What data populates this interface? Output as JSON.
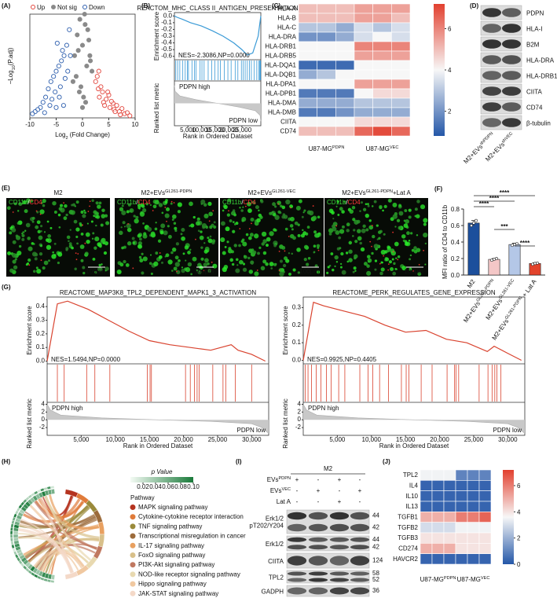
{
  "chart_data": [
    {
      "type": "scatter",
      "panel": "(A)",
      "xlabel": {
        "base": "Log",
        "sub": "2",
        "rest": " (Fold Change)"
      },
      "ylabel": {
        "base": "−Log",
        "sub": "10",
        "rest": "(P.adj)"
      },
      "xlim": [
        -10,
        10
      ],
      "ylim": [
        0,
        100
      ],
      "xticks": [
        -10,
        -5,
        0,
        5,
        10
      ],
      "series": [
        {
          "name": "Up",
          "color": "#e2463d",
          "marker": "open",
          "x": [
            2.5,
            3,
            3.2,
            3.8,
            4,
            4.5,
            5,
            5.2,
            5.8,
            6,
            6.5,
            7,
            7.5,
            8,
            8.5,
            3.5,
            4.2,
            5.5,
            6.2,
            7.2,
            2.8,
            3.1,
            4.8,
            9
          ],
          "y": [
            35,
            28,
            20,
            25,
            15,
            18,
            22,
            10,
            14,
            8,
            12,
            6,
            9,
            4,
            5,
            30,
            12,
            16,
            6,
            3,
            40,
            45,
            25,
            2
          ]
        },
        {
          "name": "Not sig",
          "color": "#8a8a8a",
          "marker": "filled",
          "x": [
            -1.5,
            -1,
            -0.5,
            0,
            0.5,
            1,
            1.5,
            -1.2,
            0.8,
            -0.3,
            0.2,
            1.2,
            -0.8,
            0.4,
            -1.8,
            1.8,
            0,
            -0.6,
            0.6,
            1.4
          ],
          "y": [
            60,
            80,
            95,
            70,
            90,
            85,
            55,
            40,
            50,
            30,
            20,
            75,
            65,
            100,
            35,
            45,
            10,
            25,
            15,
            60
          ]
        },
        {
          "name": "Down",
          "color": "#2e5fae",
          "marker": "open",
          "x": [
            -2.5,
            -3,
            -3.5,
            -4,
            -4.5,
            -5,
            -5.5,
            -6,
            -6.5,
            -7,
            -7.5,
            -8,
            -8.5,
            -9,
            -2.8,
            -3.3,
            -4.2,
            -4.8,
            -5.2,
            -5.8,
            -3.8,
            -4.4,
            -6.2,
            -2.3,
            -3.6,
            -5,
            -7.2,
            -9.5
          ],
          "y": [
            85,
            70,
            60,
            55,
            50,
            45,
            40,
            35,
            28,
            20,
            15,
            10,
            8,
            6,
            45,
            38,
            30,
            72,
            25,
            18,
            65,
            20,
            12,
            60,
            12,
            10,
            5,
            4
          ]
        }
      ]
    },
    {
      "type": "gsea",
      "panel": "(B)",
      "title": "REACTOM_MHC_CLASS II_ANTIGEN_PRESENTATION",
      "nes": "NES=-2.3086,NP=0.0000",
      "high_label": "PDPN high",
      "low_label": "PDPN low",
      "ylabel": "Enrichment score",
      "metric_label": "Ranked list metric",
      "xlabel": "Rank in Ordered Dataset",
      "color": "#3a9ad6",
      "xlim": [
        0,
        32000
      ],
      "xticks": [
        {
          "value": 5000,
          "label": "5,000"
        },
        {
          "value": 10000,
          "label": "10,000"
        },
        {
          "value": 15000,
          "label": "15,000"
        },
        {
          "value": 20000,
          "label": "20,000"
        },
        {
          "value": 25000,
          "label": "25,000"
        }
      ],
      "ylim": [
        -0.65,
        0.05
      ],
      "yticks": [
        {
          "value": 0,
          "label": "0.0"
        },
        -0.1,
        -0.2,
        -0.3,
        -0.4,
        -0.5,
        -0.6
      ],
      "x": [
        0,
        1000,
        3000,
        6000,
        10000,
        14000,
        18000,
        22000,
        25000,
        27000,
        29000,
        31000,
        32000
      ],
      "es": [
        0,
        -0.02,
        -0.05,
        -0.1,
        -0.15,
        -0.22,
        -0.3,
        -0.4,
        -0.5,
        -0.58,
        -0.55,
        -0.3,
        0
      ],
      "hits": [
        500,
        1200,
        2000,
        3100,
        4000,
        4800,
        5200,
        6500,
        7400,
        8000,
        9500,
        10200,
        11000,
        12500,
        13800,
        15000,
        16200,
        17000,
        18500,
        19800,
        21000,
        22500,
        23500,
        24800,
        25500,
        26200,
        27000,
        27800,
        28500,
        29500,
        30500,
        31200,
        31600,
        31800,
        31900
      ],
      "metric_x": [
        0,
        300,
        2000,
        8000,
        16000,
        24000,
        30000,
        31700,
        32000
      ],
      "metric": [
        1.2,
        0.8,
        0.5,
        0.25,
        0,
        -0.25,
        -0.5,
        -0.8,
        -1.2
      ],
      "metric_ylim": [
        -1.5,
        1.5
      ]
    },
    {
      "type": "heatmap",
      "panel": "(C)",
      "rows": [
        "HLA-A",
        "HLA-B",
        "HLA-C",
        "HLA-DRA",
        "HLA-DRB1",
        "HLA-DRB5",
        "HLA-DQA1",
        "HLA-DQB1",
        "HLA-DPA1",
        "HLA-DPB1",
        "HLA-DMA",
        "HLA-DMB",
        "CIITA",
        "CD74"
      ],
      "values": [
        [
          5,
          5,
          5,
          5.5,
          5.5,
          5.5
        ],
        [
          5,
          5,
          5,
          5.5,
          5.5,
          5
        ],
        [
          3,
          3,
          2.5,
          3.5,
          3,
          3.5
        ],
        [
          2,
          2,
          2.5,
          3.5,
          4,
          3.5
        ],
        [
          4,
          4,
          4,
          6,
          6,
          6
        ],
        [
          4,
          4,
          4,
          5.5,
          5.5,
          5.5
        ],
        [
          1.2,
          1.2,
          1.2,
          4,
          4,
          4
        ],
        [
          2.5,
          3,
          4,
          4,
          4,
          4
        ],
        [
          4,
          4,
          4,
          5.5,
          5.5,
          5.5
        ],
        [
          1.5,
          1.5,
          1.5,
          4,
          4.5,
          4.5
        ],
        [
          2.5,
          2.5,
          2.5,
          3,
          3,
          3
        ],
        [
          1.5,
          1.5,
          2,
          2.5,
          2.5,
          2.5
        ],
        [
          4,
          4,
          4,
          4.5,
          4.5,
          4.5
        ],
        [
          5,
          5,
          5,
          6.5,
          7,
          6.5
        ]
      ],
      "groups": [
        {
          "base": "U87-MG",
          "sup": "PDPN"
        },
        {
          "base": "U87-MG",
          "sup": "VEC"
        }
      ],
      "colors": [
        "#2457a8",
        "#f7f7f7",
        "#e2402f"
      ],
      "clim": [
        0.8,
        7.2
      ],
      "cticks": [
        2,
        4,
        6
      ]
    },
    {
      "type": "blot",
      "panel": "(D)",
      "rows": [
        "PDPN",
        "HLA-I",
        "B2M",
        "HLA-DRA",
        "HLA-DRB1",
        "CIITA",
        "CD74",
        "β-tubulin"
      ],
      "columns": [
        {
          "base": "M2+EVs",
          "sup": "shPDPN"
        },
        {
          "base": "M2+EVs",
          "sup": "shVEC"
        }
      ]
    },
    {
      "type": "micrograph",
      "panel": "(E)",
      "images": [
        {
          "title": "M2"
        },
        {
          "title": {
            "base": "M2+EVs",
            "sup": "GL261-PDPN"
          }
        },
        {
          "title": {
            "base": "M2+EVs",
            "sup": "GL261-VEC"
          }
        },
        {
          "title": {
            "base": "M2+EVs",
            "sup": "GL261-PDPN",
            "rest": "+Lat A"
          }
        }
      ],
      "stain": {
        "green": "CD11b",
        "sep": "/",
        "red": "CD4"
      },
      "scalebar": "100μm"
    },
    {
      "type": "bar",
      "panel": "(F)",
      "ylabel": "MFI ratio of CD4 to CD11b",
      "categories": [
        "M2",
        {
          "base": "M2+EVs",
          "sup": "GL261-PDPN"
        },
        {
          "base": "M2+EVs",
          "sup": "GL261-VEC"
        },
        {
          "base": "M2+EVs",
          "sup": "GL261-PDPN",
          "rest": " + Lat A"
        }
      ],
      "values": [
        0.63,
        0.19,
        0.37,
        0.14
      ],
      "errors": [
        0.03,
        0.01,
        0.015,
        0.008
      ],
      "points": [
        [
          0.6,
          0.63,
          0.66
        ],
        [
          0.18,
          0.19,
          0.2
        ],
        [
          0.36,
          0.37,
          0.38
        ],
        [
          0.13,
          0.14,
          0.145
        ]
      ],
      "colors": [
        "#1c4f9c",
        "#f4c7c7",
        "#b4c7e7",
        "#e2432b"
      ],
      "ylim": [
        0,
        0.8
      ],
      "yticks": [
        {
          "value": 0,
          "label": "0.0"
        },
        0.2,
        0.4,
        0.6,
        0.8
      ],
      "significance": [
        "****",
        "****",
        "****",
        "***",
        "****"
      ]
    },
    {
      "type": "gsea",
      "panel": "(G)",
      "title": "REACTOME_MAP3K8_TPL2_DEPENDENT_MAPK1_3_ACTIVATION",
      "nes": "NES=1.5494,NP=0.0000",
      "high_label": "PDPN high",
      "low_label": "PDPN low",
      "ylabel": "Enrichment score",
      "metric_label": "Ranked list metric",
      "xlabel": "Rank in Ordered Dataset",
      "color": "#d9432f",
      "xlim": [
        0,
        32500
      ],
      "xticks": [
        {
          "value": 5000,
          "label": "5,000"
        },
        {
          "value": 10000,
          "label": "10,000"
        },
        {
          "value": 15000,
          "label": "15,000"
        },
        {
          "value": 20000,
          "label": "20,000"
        },
        {
          "value": 25000,
          "label": "25,000"
        },
        {
          "value": 30000,
          "label": "30,000"
        }
      ],
      "ylim": [
        -0.02,
        0.47
      ],
      "yticks": [
        {
          "value": 0,
          "label": "0.0"
        },
        0.1,
        0.2,
        0.3,
        0.4
      ],
      "x": [
        0,
        1500,
        3000,
        6000,
        9000,
        12000,
        15000,
        18000,
        21000,
        24000,
        27000,
        28000,
        30000,
        32000
      ],
      "es": [
        0,
        0.42,
        0.44,
        0.38,
        0.3,
        0.22,
        0.15,
        0.12,
        0.1,
        0.08,
        0.12,
        0.08,
        0.05,
        0
      ],
      "hits": [
        1500,
        2500,
        5800,
        7000,
        9200,
        14700,
        15100,
        15300,
        20300,
        21000,
        21600,
        22000,
        22300,
        24300,
        25800,
        26200,
        27600,
        30000
      ],
      "metric_x": [
        0,
        500,
        2000,
        8000,
        16000,
        24000,
        30000,
        31500,
        32500
      ],
      "metric": [
        4,
        2.5,
        1.2,
        0.5,
        0,
        -0.4,
        -1,
        -2,
        -3.5
      ],
      "metric_ylim": [
        -4,
        4.5
      ],
      "metric_yticks": [
        4,
        2,
        0,
        -2
      ]
    },
    {
      "type": "gsea",
      "title": "REACTOME_PERK_REGULATES_GENE_EXPRESSION",
      "nes": "NES=0.9925,NP=0.4405",
      "high_label": "PDPN high",
      "low_label": "PDPN low",
      "ylabel": "Enrichment score",
      "metric_label": "Ranked list metric",
      "xlabel": "Rank in Ordered Dataset",
      "color": "#d9432f",
      "xlim": [
        0,
        32500
      ],
      "xticks": [
        {
          "value": 5000,
          "label": "5,000"
        },
        {
          "value": 10000,
          "label": "10,000"
        },
        {
          "value": 15000,
          "label": "15,000"
        },
        {
          "value": 20000,
          "label": "20,000"
        },
        {
          "value": 25000,
          "label": "25,000"
        },
        {
          "value": 30000,
          "label": "30,000"
        }
      ],
      "ylim": [
        -0.02,
        0.36
      ],
      "yticks": [
        {
          "value": 0,
          "label": "0.0"
        },
        0.1,
        0.2,
        0.3
      ],
      "x": [
        0,
        1500,
        3000,
        6000,
        9000,
        12000,
        15000,
        18000,
        21000,
        24000,
        27000,
        28000,
        30000,
        32000
      ],
      "es": [
        0,
        0.33,
        0.31,
        0.28,
        0.25,
        0.2,
        0.16,
        0.17,
        0.12,
        0.1,
        0.05,
        0.08,
        0.04,
        0
      ],
      "hits": [
        300,
        700,
        1200,
        1900,
        2600,
        3400,
        4100,
        5200,
        6100,
        8300,
        9500,
        10200,
        11200,
        12500,
        14400,
        15100,
        15500,
        17300,
        18900,
        21100,
        22200,
        22400,
        22800,
        25800,
        27100,
        27700,
        28100,
        28400,
        29000
      ],
      "metric_x": [
        0,
        500,
        2000,
        8000,
        16000,
        24000,
        30000,
        31500,
        32500
      ],
      "metric": [
        4,
        2.5,
        1.2,
        0.5,
        0,
        -0.4,
        -1,
        -2,
        -3.5
      ],
      "metric_ylim": [
        -4,
        4.5
      ],
      "metric_yticks": [
        4,
        2,
        0,
        -2
      ]
    },
    {
      "type": "chord",
      "panel": "(H)",
      "legend_title": "p Value",
      "pvalue_lim": [
        0,
        0.1
      ],
      "pvalue_colors": [
        "#f4fbf4",
        "#1a7a3a"
      ],
      "pvalue_ticks": [
        0.02,
        0.04,
        0.06,
        0.08,
        {
          "value": 0.1,
          "label": "0.10"
        }
      ],
      "pathway_title": "Pathway",
      "pathways": [
        {
          "name": "MAPK signaling pathway",
          "color": "#b5331f"
        },
        {
          "name": "Cytokine-cytokine receptor interaction",
          "color": "#e07b3a"
        },
        {
          "name": "TNF signaling pathway",
          "color": "#9a8a3a"
        },
        {
          "name": "Transcriptional misregulation in cancer",
          "color": "#9c6b3b"
        },
        {
          "name": "IL-17 signaling pathway",
          "color": "#e8a060"
        },
        {
          "name": "FoxO signaling pathway",
          "color": "#d8c08a"
        },
        {
          "name": "PI3K-Akt signaling pathway",
          "color": "#c07860"
        },
        {
          "name": "NOD-like receptor signaling pathway",
          "color": "#e8d9b0"
        },
        {
          "name": "Hippo signaling pathway",
          "color": "#f0c8a0"
        },
        {
          "name": "JAK-STAT signaling pathway",
          "color": "#f4d9c8"
        }
      ]
    },
    {
      "type": "blot",
      "panel": "(I)",
      "title": "M2",
      "conditions": [
        {
          "label": {
            "base": "EVs",
            "sup": "PDPN"
          },
          "signs": [
            "+",
            "-",
            "+",
            "-"
          ]
        },
        {
          "label": {
            "base": "EVs",
            "sup": "VEC"
          },
          "signs": [
            "-",
            "+",
            "-",
            "+"
          ]
        },
        {
          "label": "Lat A",
          "signs": [
            "-",
            "-",
            "+",
            "-"
          ]
        }
      ],
      "rows": [
        {
          "label": [
            "Erk1/2",
            "pT202/Y204"
          ],
          "mw": [
            "44",
            "42"
          ]
        },
        {
          "label": "Erk1/2",
          "mw": [
            "44",
            "42"
          ]
        },
        {
          "label": "CIITA",
          "mw": [
            "124"
          ]
        },
        {
          "label": "TPL2",
          "mw": [
            "58",
            "52"
          ]
        },
        {
          "label": "GADPH",
          "mw": [
            "36"
          ]
        }
      ]
    },
    {
      "type": "heatmap",
      "panel": "(J)",
      "rows": [
        "TPL2",
        "IL4",
        "IL10",
        "IL13",
        "TGFB1",
        "TGFB2",
        "TGFB3",
        "CD274",
        "HAVCR2"
      ],
      "values": [
        [
          3.5,
          3.5,
          3.5,
          1,
          1,
          1
        ],
        [
          0.3,
          0.3,
          0.3,
          0.3,
          0.3,
          0.3
        ],
        [
          0.3,
          0.3,
          0.3,
          0.3,
          0.3,
          0.3
        ],
        [
          0.3,
          0.3,
          0.3,
          0.3,
          0.3,
          0.3
        ],
        [
          5,
          5,
          5,
          6,
          6,
          6.5
        ],
        [
          3,
          3,
          3,
          3.5,
          3.5,
          3.5
        ],
        [
          4,
          4,
          4,
          4,
          4,
          4
        ],
        [
          5,
          5,
          5,
          4,
          4,
          4
        ],
        [
          0.3,
          0.3,
          0.3,
          0.3,
          0.3,
          0.3
        ]
      ],
      "groups": [
        {
          "base": "U87-MG",
          "sup": "PDPN"
        },
        {
          "base": "U87-MG",
          "sup": "VEC"
        }
      ],
      "colors": [
        "#2457a8",
        "#f7f7f7",
        "#e2402f"
      ],
      "clim": [
        0,
        7.2
      ],
      "cticks": [
        0,
        2,
        4,
        6
      ]
    }
  ]
}
